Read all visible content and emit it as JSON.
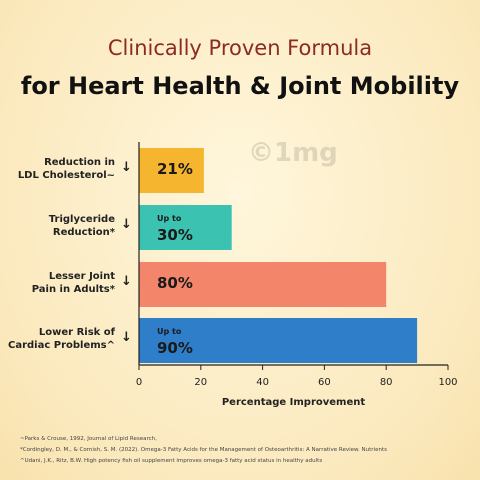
{
  "chart_data": {
    "type": "bar",
    "orientation": "horizontal",
    "title": "Clinically Proven Formula",
    "subtitle": "for Heart Health & Joint Mobility",
    "categories": [
      "Reduction in\nLDL Cholesterol~",
      "Triglyceride\nReduction*",
      "Lesser Joint\nPain in Adults*",
      "Lower Risk of\nCardiac Problems^"
    ],
    "values": [
      21,
      30,
      80,
      90
    ],
    "value_labels": [
      "21%",
      "Up to\n30%",
      "80%",
      "Up to\n90%"
    ],
    "colors": [
      "#f5b52e",
      "#3cc2b1",
      "#f2856a",
      "#2f7ec9"
    ],
    "xlim": [
      0,
      100
    ],
    "xticks": [
      0,
      20,
      40,
      60,
      80,
      100
    ],
    "xlabel": "Percentage Improvement",
    "watermark": "©1mg",
    "footnotes": [
      "~Parks & Crouse, 1992, Journal of Lipid Research,",
      "*Cordingley, D. M., & Cornish, S. M. (2022). Omega-3 Fatty Acids for the Management of Osteoarthritis: A Narrative Review. Nutrients",
      "^Udani, J.K., Ritz, B.W. High potency fish oil supplement improves omega-3 fatty acid status in healthy adults"
    ]
  }
}
